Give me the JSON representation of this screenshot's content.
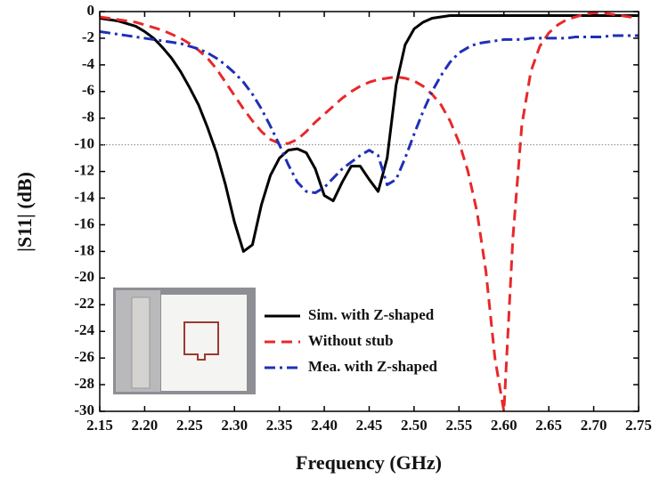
{
  "chart_data": {
    "type": "line",
    "xlabel": "Frequency (GHz)",
    "ylabel": "|S11| (dB)",
    "x": [
      2.15,
      2.16,
      2.17,
      2.18,
      2.19,
      2.2,
      2.21,
      2.22,
      2.23,
      2.24,
      2.25,
      2.26,
      2.27,
      2.28,
      2.29,
      2.3,
      2.31,
      2.32,
      2.33,
      2.34,
      2.35,
      2.36,
      2.37,
      2.38,
      2.39,
      2.4,
      2.41,
      2.42,
      2.43,
      2.44,
      2.45,
      2.46,
      2.47,
      2.48,
      2.49,
      2.5,
      2.51,
      2.52,
      2.53,
      2.54,
      2.55,
      2.56,
      2.57,
      2.58,
      2.59,
      2.6,
      2.61,
      2.62,
      2.63,
      2.64,
      2.65,
      2.66,
      2.67,
      2.68,
      2.69,
      2.7,
      2.71,
      2.72,
      2.73,
      2.74,
      2.75
    ],
    "series": [
      {
        "name": "Sim. with Z-shaped",
        "color": "#000000",
        "dash": "solid",
        "values": [
          -0.5,
          -0.6,
          -0.7,
          -0.9,
          -1.1,
          -1.5,
          -2.0,
          -2.7,
          -3.5,
          -4.5,
          -5.7,
          -7.0,
          -8.7,
          -10.6,
          -13.0,
          -15.8,
          -18.0,
          -17.5,
          -14.5,
          -12.3,
          -11.0,
          -10.4,
          -10.3,
          -10.6,
          -11.8,
          -13.8,
          -14.2,
          -12.8,
          -11.6,
          -11.6,
          -12.6,
          -13.5,
          -11.0,
          -5.5,
          -2.5,
          -1.3,
          -0.8,
          -0.5,
          -0.4,
          -0.3,
          -0.3,
          -0.3,
          -0.3,
          -0.3,
          -0.3,
          -0.3,
          -0.3,
          -0.3,
          -0.3,
          -0.3,
          -0.3,
          -0.3,
          -0.3,
          -0.3,
          -0.3,
          -0.3,
          -0.3,
          -0.3,
          -0.3,
          -0.3,
          -0.3
        ]
      },
      {
        "name": "Without stub",
        "color": "#e8282a",
        "dash": "dashed",
        "values": [
          -0.4,
          -0.5,
          -0.6,
          -0.7,
          -0.8,
          -1.0,
          -1.2,
          -1.4,
          -1.7,
          -2.0,
          -2.4,
          -2.9,
          -3.5,
          -4.3,
          -5.3,
          -6.3,
          -7.3,
          -8.2,
          -9.0,
          -9.6,
          -9.9,
          -9.9,
          -9.6,
          -9.0,
          -8.3,
          -7.7,
          -7.1,
          -6.5,
          -6.0,
          -5.6,
          -5.3,
          -5.1,
          -5.0,
          -4.9,
          -5.0,
          -5.2,
          -5.6,
          -6.2,
          -7.0,
          -8.2,
          -9.8,
          -12.0,
          -15.0,
          -19.5,
          -26.0,
          -30.0,
          -17.0,
          -8.5,
          -4.5,
          -2.6,
          -1.6,
          -1.0,
          -0.6,
          -0.4,
          -0.2,
          -0.1,
          -0.1,
          -0.2,
          -0.3,
          -0.4,
          -0.4
        ]
      },
      {
        "name": "Mea. with Z-shaped",
        "color": "#1f2fb8",
        "dash": "dashdot",
        "values": [
          -1.5,
          -1.6,
          -1.7,
          -1.8,
          -1.9,
          -2.0,
          -2.1,
          -2.2,
          -2.3,
          -2.4,
          -2.6,
          -2.8,
          -3.1,
          -3.5,
          -4.0,
          -4.6,
          -5.3,
          -6.2,
          -7.3,
          -8.6,
          -10.0,
          -11.5,
          -12.8,
          -13.5,
          -13.6,
          -13.2,
          -12.5,
          -11.8,
          -11.3,
          -10.8,
          -10.4,
          -10.8,
          -13.0,
          -12.6,
          -11.0,
          -9.2,
          -7.5,
          -6.0,
          -4.8,
          -3.8,
          -3.1,
          -2.7,
          -2.4,
          -2.3,
          -2.2,
          -2.1,
          -2.1,
          -2.1,
          -2.0,
          -2.0,
          -2.0,
          -2.0,
          -2.0,
          -1.9,
          -1.9,
          -1.9,
          -1.9,
          -1.8,
          -1.8,
          -1.8,
          -1.8
        ]
      }
    ],
    "xlim": [
      2.15,
      2.75
    ],
    "xticks": [
      2.15,
      {
        "value": 2.2,
        "label": "2.20"
      },
      2.25,
      {
        "value": 2.3,
        "label": "2.30"
      },
      2.35,
      {
        "value": 2.4,
        "label": "2.40"
      },
      2.45,
      {
        "value": 2.5,
        "label": "2.50"
      },
      2.55,
      {
        "value": 2.6,
        "label": "2.60"
      },
      2.65,
      {
        "value": 2.7,
        "label": "2.70"
      },
      2.75
    ],
    "ylim": [
      -30,
      0
    ],
    "yticks": [
      -30,
      -28,
      -26,
      -24,
      -22,
      -20,
      -18,
      -16,
      -14,
      -12,
      -10,
      -8,
      -6,
      -4,
      -2,
      0
    ],
    "hline": -10,
    "legend": "lower center"
  }
}
